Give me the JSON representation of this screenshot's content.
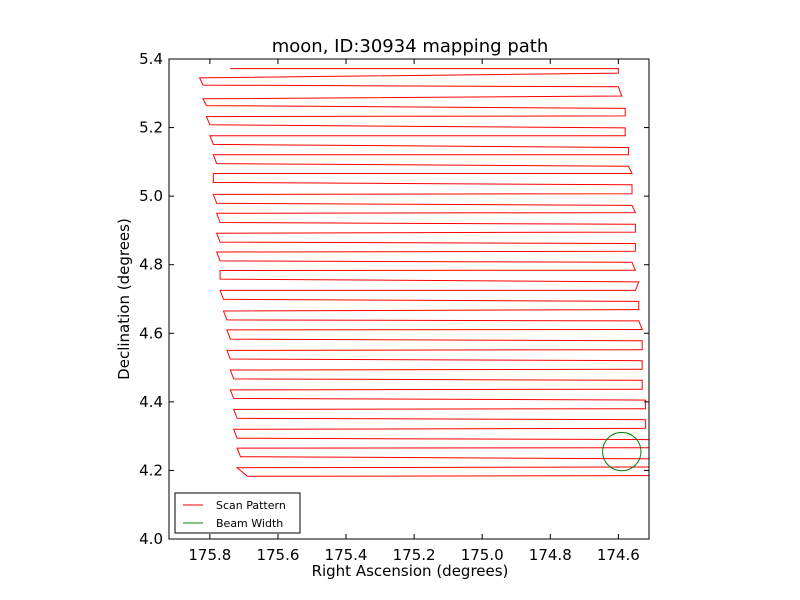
{
  "chart_data": {
    "type": "line",
    "title": "moon, ID:30934 mapping path",
    "xlabel": "Right Ascension (degrees)",
    "ylabel": "Declination (degrees)",
    "xlim": [
      175.92,
      174.51
    ],
    "ylim": [
      4.0,
      5.4
    ],
    "x_inverted": true,
    "xticks": [
      175.8,
      175.6,
      175.4,
      175.2,
      175.0,
      174.8,
      174.6
    ],
    "xtick_labels": [
      "175.8",
      "175.6",
      "175.4",
      "175.2",
      "175.0",
      "174.8",
      "174.6"
    ],
    "yticks": [
      4.0,
      4.2,
      4.4,
      4.6,
      4.8,
      5.0,
      5.2,
      5.4
    ],
    "ytick_labels": [
      "4.0",
      "4.2",
      "4.4",
      "4.6",
      "4.8",
      "5.0",
      "5.2",
      "5.4"
    ],
    "grid": false,
    "legend_position": "lower-left",
    "series": [
      {
        "name": "Scan Pattern",
        "color": "#ff0000",
        "kind": "raster-scan",
        "points": [
          [
            175.74,
            5.372
          ],
          [
            174.6,
            5.372
          ],
          [
            174.6,
            5.359
          ],
          [
            175.83,
            5.345
          ],
          [
            175.82,
            5.324
          ],
          [
            174.6,
            5.319
          ],
          [
            174.59,
            5.292
          ],
          [
            175.82,
            5.284
          ],
          [
            175.81,
            5.264
          ],
          [
            174.58,
            5.256
          ],
          [
            174.58,
            5.234
          ],
          [
            175.81,
            5.232
          ],
          [
            175.8,
            5.208
          ],
          [
            174.58,
            5.199
          ],
          [
            174.58,
            5.176
          ],
          [
            175.8,
            5.176
          ],
          [
            175.79,
            5.151
          ],
          [
            174.57,
            5.142
          ],
          [
            174.57,
            5.121
          ],
          [
            175.79,
            5.121
          ],
          [
            175.78,
            5.095
          ],
          [
            174.57,
            5.087
          ],
          [
            174.56,
            5.066
          ],
          [
            175.79,
            5.066
          ],
          [
            175.79,
            5.04
          ],
          [
            174.56,
            5.033
          ],
          [
            174.56,
            5.007
          ],
          [
            175.79,
            5.005
          ],
          [
            175.78,
            4.979
          ],
          [
            174.56,
            4.973
          ],
          [
            174.55,
            4.952
          ],
          [
            175.78,
            4.95
          ],
          [
            175.77,
            4.923
          ],
          [
            174.55,
            4.918
          ],
          [
            174.55,
            4.895
          ],
          [
            175.78,
            4.892
          ],
          [
            175.77,
            4.866
          ],
          [
            174.55,
            4.862
          ],
          [
            174.55,
            4.839
          ],
          [
            175.78,
            4.837
          ],
          [
            175.77,
            4.811
          ],
          [
            174.56,
            4.807
          ],
          [
            174.55,
            4.784
          ],
          [
            175.77,
            4.783
          ],
          [
            175.77,
            4.758
          ],
          [
            174.54,
            4.75
          ],
          [
            174.55,
            4.725
          ],
          [
            175.77,
            4.725
          ],
          [
            175.76,
            4.699
          ],
          [
            174.54,
            4.693
          ],
          [
            174.54,
            4.669
          ],
          [
            175.76,
            4.665
          ],
          [
            175.75,
            4.639
          ],
          [
            174.54,
            4.636
          ],
          [
            174.53,
            4.611
          ],
          [
            175.75,
            4.61
          ],
          [
            175.74,
            4.583
          ],
          [
            174.53,
            4.578
          ],
          [
            174.53,
            4.552
          ],
          [
            175.75,
            4.55
          ],
          [
            175.74,
            4.525
          ],
          [
            174.53,
            4.52
          ],
          [
            174.53,
            4.495
          ],
          [
            175.74,
            4.493
          ],
          [
            175.73,
            4.467
          ],
          [
            174.53,
            4.463
          ],
          [
            174.53,
            4.437
          ],
          [
            175.74,
            4.435
          ],
          [
            175.73,
            4.41
          ],
          [
            174.52,
            4.405
          ],
          [
            174.52,
            4.38
          ],
          [
            175.73,
            4.378
          ],
          [
            175.72,
            4.352
          ],
          [
            174.52,
            4.348
          ],
          [
            174.52,
            4.323
          ],
          [
            175.73,
            4.32
          ],
          [
            175.72,
            4.294
          ],
          [
            174.51,
            4.29
          ],
          [
            174.51,
            4.266
          ],
          [
            175.72,
            4.265
          ],
          [
            175.71,
            4.24
          ],
          [
            174.51,
            4.234
          ],
          [
            174.51,
            4.21
          ],
          [
            175.72,
            4.208
          ],
          [
            175.69,
            4.183
          ],
          [
            174.51,
            4.185
          ]
        ]
      },
      {
        "name": "Beam Width",
        "color": "#008000",
        "kind": "circle",
        "center": [
          174.59,
          4.255
        ],
        "radius_dec": 0.056
      }
    ]
  }
}
